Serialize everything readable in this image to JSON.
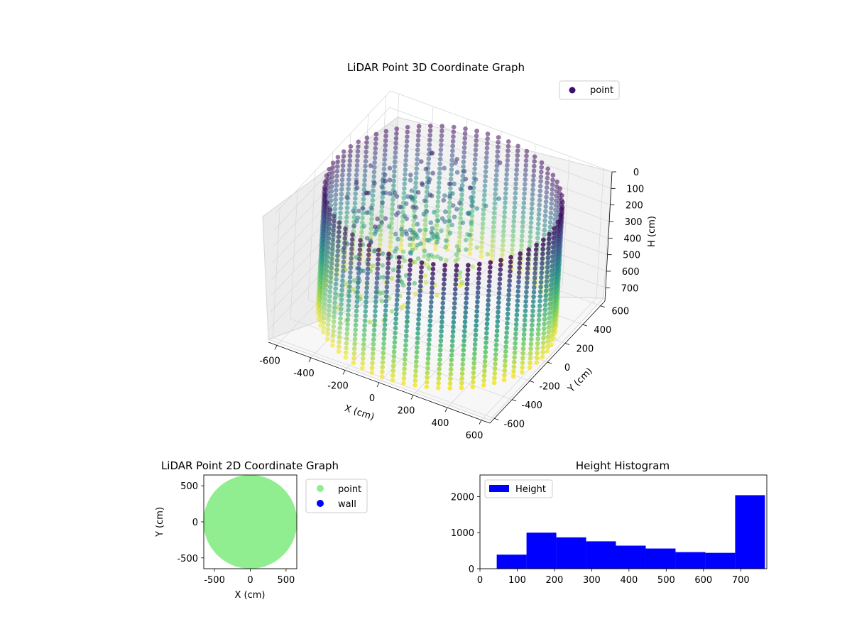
{
  "chart_data": [
    {
      "type": "scatter",
      "title": "LiDAR Point 3D Coordinate Graph",
      "xlabel": "X (cm)",
      "ylabel": "Y (cm)",
      "zlabel": "H (cm)",
      "xlim": [
        -650,
        650
      ],
      "ylim": [
        -650,
        650
      ],
      "zlim": [
        780,
        0
      ],
      "xticks": [
        -600,
        -400,
        -200,
        0,
        200,
        400,
        600
      ],
      "yticks": [
        -600,
        -400,
        -200,
        0,
        200,
        400,
        600
      ],
      "zticks": [
        0,
        100,
        200,
        300,
        400,
        500,
        600,
        700
      ],
      "legend_location": "top-right",
      "colormap": "viridis",
      "series": [
        {
          "name": "point",
          "color": "#3b0f70",
          "description_shape": "cylindrical wall of vertical scan columns, radius ~620 cm, heights 0-770 cm"
        }
      ],
      "grid": true
    },
    {
      "type": "scatter",
      "title": "LiDAR Point 2D Coordinate Graph",
      "xlabel": "X (cm)",
      "ylabel": "Y (cm)",
      "xlim": [
        -650,
        650
      ],
      "ylim": [
        -650,
        650
      ],
      "xticks": [
        -500,
        0,
        500
      ],
      "yticks": [
        -500,
        0,
        500
      ],
      "legend_location": "outside-right",
      "series": [
        {
          "name": "point",
          "color": "#90ee90",
          "shape": "filled disk, radius ~640 cm"
        },
        {
          "name": "wall",
          "color": "#0000ff"
        }
      ],
      "grid": false
    },
    {
      "type": "bar",
      "title": "Height Histogram",
      "xlim": [
        0,
        770
      ],
      "ylim": [
        0,
        2600
      ],
      "xticks": [
        0,
        100,
        200,
        300,
        400,
        500,
        600,
        700
      ],
      "yticks": [
        0,
        1000,
        2000
      ],
      "legend_location": "top-left",
      "series": [
        {
          "name": "Height",
          "color": "#0000ff",
          "bins": [
            {
              "x0": 45,
              "x1": 125,
              "count": 390
            },
            {
              "x0": 125,
              "x1": 205,
              "count": 1000
            },
            {
              "x0": 205,
              "x1": 285,
              "count": 870
            },
            {
              "x0": 285,
              "x1": 365,
              "count": 760
            },
            {
              "x0": 365,
              "x1": 445,
              "count": 640
            },
            {
              "x0": 445,
              "x1": 525,
              "count": 560
            },
            {
              "x0": 525,
              "x1": 605,
              "count": 460
            },
            {
              "x0": 605,
              "x1": 685,
              "count": 440
            },
            {
              "x0": 685,
              "x1": 765,
              "count": 2040
            }
          ]
        }
      ],
      "grid": false
    }
  ]
}
